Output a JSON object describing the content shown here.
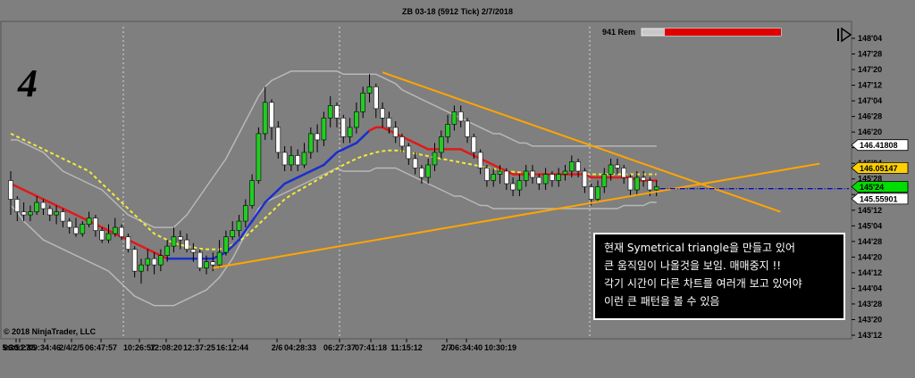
{
  "chart_data": {
    "type": "candlestick",
    "title": "ZB 03-18 (5912 Tick)  2/7/2018",
    "panel_number": "4",
    "remaining_label": "941 Rem",
    "copyright": "© 2018 NinjaTrader, LLC",
    "y_ticks": [
      "148'04",
      "147'28",
      "147'20",
      "147'12",
      "147'04",
      "146'28",
      "146'20",
      "146'12",
      "146'04",
      "145'28",
      "145'20",
      "145'12",
      "145'04",
      "144'28",
      "144'20",
      "144'12",
      "144'04",
      "143'28",
      "143'20",
      "143'12"
    ],
    "x_ticks": [
      "5:30:27",
      "06:51:35",
      "09:34:46",
      "2/4/2/5",
      "06:47:57",
      "10:26:57",
      "12:08:20",
      "12:37:25",
      "16:12:44",
      "2/6",
      "04:28:33",
      "06:27:37",
      "07:41:18",
      "11:15:12",
      "2/7",
      "06:34:40",
      "10:30:19"
    ],
    "price_markers": [
      {
        "label": "146.41808",
        "color": "#ffffff"
      },
      {
        "label": "146.05147",
        "color": "#ffd000"
      },
      {
        "label": "145'24",
        "color": "#00dd00"
      },
      {
        "label": "145.55901",
        "color": "#ffffff"
      }
    ],
    "annotation_lines": [
      "현재 Symetrical triangle을 만들고 있어",
      "큰 움직임이 나올것을 보임. 매매중지 !!",
      "각기 시간이 다른 차트를 여러개 보고 있어야",
      "이런 큰 패턴을 볼 수 있음"
    ],
    "colors": {
      "background": "#7f7f7f",
      "up_candle": "#22cc22",
      "down_candle": "#ffffff",
      "ema_fast": "#1a2fd0",
      "ema_slow": "#e01a1a",
      "sma_dashed": "#f2ea3c",
      "bollinger": "#b8b8b8",
      "trendlines": "#ffa500",
      "last_price_line": "#0000cc"
    },
    "series": [
      {
        "values": [
          [
            145.85,
            145.55,
            146.0,
            145.3
          ],
          [
            145.55,
            145.35,
            145.6,
            145.2
          ],
          [
            145.35,
            145.3,
            145.5,
            145.2
          ],
          [
            145.3,
            145.35,
            145.45,
            145.2
          ],
          [
            145.35,
            145.5,
            145.6,
            145.3
          ],
          [
            145.5,
            145.4,
            145.55,
            145.3
          ],
          [
            145.4,
            145.3,
            145.45,
            145.2
          ],
          [
            145.3,
            145.35,
            145.45,
            145.15
          ],
          [
            145.35,
            145.2,
            145.4,
            145.1
          ],
          [
            145.2,
            145.1,
            145.25,
            145.0
          ],
          [
            145.1,
            145.0,
            145.25,
            144.95
          ],
          [
            145.0,
            145.15,
            145.2,
            144.95
          ],
          [
            145.15,
            145.25,
            145.35,
            145.1
          ],
          [
            145.25,
            145.05,
            145.3,
            144.95
          ],
          [
            145.05,
            144.9,
            145.1,
            144.85
          ],
          [
            144.9,
            145.0,
            145.15,
            144.85
          ],
          [
            145.0,
            145.1,
            145.25,
            144.95
          ],
          [
            145.1,
            144.95,
            145.15,
            144.9
          ],
          [
            144.95,
            144.75,
            145.0,
            144.7
          ],
          [
            144.75,
            144.4,
            144.8,
            144.3
          ],
          [
            144.4,
            144.5,
            144.6,
            144.2
          ],
          [
            144.5,
            144.6,
            144.75,
            144.4
          ],
          [
            144.6,
            144.5,
            144.7,
            144.35
          ],
          [
            144.5,
            144.65,
            144.75,
            144.4
          ],
          [
            144.65,
            144.8,
            144.9,
            144.55
          ],
          [
            144.8,
            144.95,
            145.1,
            144.7
          ],
          [
            144.95,
            144.9,
            145.05,
            144.75
          ],
          [
            144.9,
            144.75,
            145.0,
            144.7
          ],
          [
            144.75,
            144.7,
            144.85,
            144.55
          ],
          [
            144.7,
            144.45,
            144.75,
            144.4
          ],
          [
            144.45,
            144.55,
            144.65,
            144.35
          ],
          [
            144.55,
            144.5,
            144.7,
            144.4
          ],
          [
            144.5,
            144.7,
            144.9,
            144.45
          ],
          [
            144.7,
            144.95,
            145.05,
            144.65
          ],
          [
            144.95,
            145.05,
            145.2,
            144.9
          ],
          [
            145.05,
            145.2,
            145.3,
            144.95
          ],
          [
            145.2,
            145.45,
            145.55,
            145.1
          ],
          [
            145.45,
            145.85,
            145.95,
            145.4
          ],
          [
            145.85,
            146.6,
            146.7,
            145.8
          ],
          [
            146.6,
            147.1,
            147.35,
            146.5
          ],
          [
            147.1,
            146.7,
            147.15,
            146.5
          ],
          [
            146.7,
            146.3,
            146.8,
            146.2
          ],
          [
            146.3,
            146.1,
            146.4,
            146.0
          ],
          [
            146.1,
            146.25,
            146.4,
            146.0
          ],
          [
            146.25,
            146.1,
            146.35,
            146.0
          ],
          [
            146.1,
            146.3,
            146.45,
            146.05
          ],
          [
            146.3,
            146.6,
            146.7,
            146.2
          ],
          [
            146.6,
            146.5,
            146.75,
            146.3
          ],
          [
            146.5,
            146.85,
            146.95,
            146.4
          ],
          [
            146.85,
            147.05,
            147.2,
            146.7
          ],
          [
            147.05,
            146.85,
            147.1,
            146.7
          ],
          [
            146.85,
            146.55,
            146.9,
            146.45
          ],
          [
            146.55,
            146.7,
            146.85,
            146.45
          ],
          [
            146.7,
            146.95,
            147.1,
            146.6
          ],
          [
            146.95,
            147.25,
            147.35,
            146.85
          ],
          [
            147.25,
            147.35,
            147.55,
            147.1
          ],
          [
            147.35,
            147.0,
            147.4,
            146.85
          ],
          [
            147.0,
            146.85,
            147.1,
            146.7
          ],
          [
            146.85,
            146.7,
            146.95,
            146.6
          ],
          [
            146.7,
            146.55,
            146.8,
            146.45
          ],
          [
            146.55,
            146.4,
            146.6,
            146.3
          ],
          [
            146.4,
            146.2,
            146.45,
            146.1
          ],
          [
            146.2,
            146.05,
            146.3,
            145.95
          ],
          [
            146.05,
            145.9,
            146.1,
            145.8
          ],
          [
            145.9,
            146.1,
            146.2,
            145.8
          ],
          [
            146.1,
            146.3,
            146.45,
            146.0
          ],
          [
            146.3,
            146.55,
            146.65,
            146.2
          ],
          [
            146.55,
            146.75,
            146.9,
            146.45
          ],
          [
            146.75,
            146.95,
            147.05,
            146.65
          ],
          [
            146.95,
            146.8,
            147.05,
            146.7
          ],
          [
            146.8,
            146.55,
            146.85,
            146.45
          ],
          [
            146.55,
            146.3,
            146.6,
            146.2
          ],
          [
            146.3,
            146.05,
            146.35,
            145.95
          ],
          [
            146.05,
            145.85,
            146.1,
            145.75
          ],
          [
            145.85,
            145.95,
            146.05,
            145.75
          ],
          [
            145.95,
            146.0,
            146.1,
            145.8
          ],
          [
            146.0,
            145.8,
            146.05,
            145.7
          ],
          [
            145.8,
            145.7,
            145.9,
            145.6
          ],
          [
            145.7,
            145.85,
            145.95,
            145.6
          ],
          [
            145.85,
            146.0,
            146.1,
            145.75
          ],
          [
            146.0,
            145.9,
            146.1,
            145.8
          ],
          [
            145.9,
            145.8,
            145.95,
            145.7
          ],
          [
            145.8,
            145.95,
            146.05,
            145.7
          ],
          [
            145.95,
            145.85,
            146.0,
            145.75
          ],
          [
            145.85,
            145.95,
            146.05,
            145.75
          ],
          [
            145.95,
            146.0,
            146.1,
            145.85
          ],
          [
            146.0,
            146.15,
            146.25,
            145.9
          ],
          [
            146.15,
            146.0,
            146.2,
            145.9
          ],
          [
            146.0,
            145.75,
            146.05,
            145.65
          ],
          [
            145.75,
            145.55,
            145.8,
            145.45
          ],
          [
            145.55,
            145.75,
            145.85,
            145.5
          ],
          [
            145.75,
            145.95,
            146.05,
            145.65
          ],
          [
            145.95,
            146.1,
            146.2,
            145.85
          ],
          [
            146.1,
            146.05,
            146.2,
            145.95
          ],
          [
            146.05,
            145.9,
            146.1,
            145.8
          ],
          [
            145.9,
            145.7,
            145.95,
            145.6
          ],
          [
            145.7,
            145.9,
            146.0,
            145.6
          ],
          [
            145.9,
            145.85,
            146.0,
            145.75
          ],
          [
            145.85,
            145.7,
            145.9,
            145.6
          ],
          [
            145.7,
            145.75,
            145.85,
            145.6
          ]
        ]
      }
    ],
    "bollinger_upper": [
      146.5,
      146.5,
      146.45,
      146.4,
      146.35,
      146.3,
      146.2,
      146.1,
      146.0,
      145.95,
      145.9,
      145.85,
      145.8,
      145.75,
      145.7,
      145.6,
      145.5,
      145.4,
      145.3,
      145.25,
      145.2,
      145.15,
      145.1,
      145.1,
      145.1,
      145.1,
      145.2,
      145.3,
      145.45,
      145.6,
      145.75,
      145.9,
      146.05,
      146.2,
      146.4,
      146.6,
      146.8,
      147.0,
      147.2,
      147.35,
      147.45,
      147.5,
      147.55,
      147.6,
      147.6,
      147.6,
      147.6,
      147.6,
      147.6,
      147.6,
      147.6,
      147.55,
      147.55,
      147.55,
      147.55,
      147.55,
      147.55,
      147.5,
      147.45,
      147.4,
      147.3,
      147.25,
      147.2,
      147.15,
      147.1,
      147.05,
      147.0,
      146.95,
      146.9,
      146.85,
      146.8,
      146.75,
      146.7,
      146.65,
      146.6,
      146.6,
      146.55,
      146.5,
      146.45,
      146.45,
      146.4,
      146.4,
      146.4,
      146.4,
      146.4,
      146.4,
      146.4,
      146.4,
      146.4,
      146.4,
      146.4,
      146.4,
      146.4,
      146.4,
      146.4,
      146.4,
      146.4,
      146.4,
      146.4,
      146.4
    ],
    "bollinger_lower": [
      145.45,
      145.35,
      145.2,
      145.1,
      145.0,
      144.9,
      144.85,
      144.8,
      144.75,
      144.7,
      144.65,
      144.6,
      144.55,
      144.5,
      144.45,
      144.4,
      144.3,
      144.2,
      144.1,
      144.0,
      143.95,
      143.9,
      143.85,
      143.85,
      143.85,
      143.85,
      143.9,
      143.95,
      144.0,
      144.05,
      144.1,
      144.2,
      144.3,
      144.45,
      144.6,
      144.8,
      145.0,
      145.2,
      145.4,
      145.5,
      145.55,
      145.6,
      145.65,
      145.7,
      145.75,
      145.8,
      145.85,
      145.9,
      145.95,
      146.0,
      146.05,
      146.0,
      146.0,
      146.0,
      146.0,
      146.0,
      146.05,
      146.05,
      146.05,
      146.05,
      146.0,
      145.95,
      145.9,
      145.85,
      145.8,
      145.75,
      145.7,
      145.65,
      145.6,
      145.6,
      145.55,
      145.5,
      145.45,
      145.45,
      145.4,
      145.4,
      145.4,
      145.4,
      145.4,
      145.4,
      145.4,
      145.4,
      145.4,
      145.4,
      145.4,
      145.4,
      145.4,
      145.4,
      145.4,
      145.4,
      145.4,
      145.4,
      145.4,
      145.4,
      145.45,
      145.45,
      145.45,
      145.45,
      145.5,
      145.5
    ],
    "ema_fast": [
      145.8,
      145.75,
      145.7,
      145.65,
      145.6,
      145.55,
      145.5,
      145.45,
      145.4,
      145.35,
      145.3,
      145.25,
      145.2,
      145.15,
      145.1,
      145.05,
      145.0,
      144.95,
      144.9,
      144.85,
      144.8,
      144.75,
      144.7,
      144.65,
      144.6,
      144.6,
      144.6,
      144.6,
      144.6,
      144.6,
      144.6,
      144.6,
      144.65,
      144.7,
      144.8,
      144.9,
      145.05,
      145.2,
      145.35,
      145.5,
      145.6,
      145.7,
      145.8,
      145.85,
      145.9,
      145.95,
      146.0,
      146.05,
      146.1,
      146.2,
      146.3,
      146.35,
      146.4,
      146.45,
      146.55,
      146.65,
      146.7,
      146.7,
      146.65,
      146.6,
      146.55,
      146.5,
      146.45,
      146.4,
      146.35,
      146.35,
      146.35,
      146.35,
      146.35,
      146.35,
      146.3,
      146.25,
      146.2,
      146.15,
      146.1,
      146.05,
      146.0,
      145.95,
      145.95,
      145.95,
      145.95,
      145.95,
      145.95,
      145.95,
      145.95,
      145.95,
      145.95,
      145.95,
      145.95,
      145.9,
      145.9,
      145.9,
      145.9,
      145.9,
      145.9,
      145.9,
      145.85,
      145.85,
      145.85,
      145.85
    ],
    "ema_fast_color": [
      "red",
      "red",
      "red",
      "red",
      "red",
      "red",
      "red",
      "red",
      "red",
      "red",
      "red",
      "red",
      "red",
      "red",
      "red",
      "red",
      "red",
      "red",
      "red",
      "red",
      "red",
      "red",
      "red",
      "red",
      "red",
      "blue",
      "blue",
      "blue",
      "blue",
      "blue",
      "blue",
      "blue",
      "blue",
      "blue",
      "blue",
      "blue",
      "blue",
      "blue",
      "blue",
      "blue",
      "blue",
      "blue",
      "blue",
      "blue",
      "blue",
      "blue",
      "blue",
      "blue",
      "blue",
      "blue",
      "blue",
      "blue",
      "blue",
      "blue",
      "blue",
      "blue",
      "red",
      "red",
      "red",
      "red",
      "red",
      "red",
      "red",
      "red",
      "red",
      "red",
      "red",
      "red",
      "red",
      "red",
      "red",
      "red",
      "red",
      "red",
      "red",
      "red",
      "red",
      "red",
      "red",
      "red",
      "red",
      "red",
      "red",
      "red",
      "red",
      "red",
      "red",
      "red",
      "red",
      "red",
      "red",
      "red",
      "red",
      "red",
      "red",
      "red",
      "red",
      "red",
      "red",
      "red"
    ],
    "sma_dashed": [
      146.6,
      146.55,
      146.5,
      146.45,
      146.4,
      146.35,
      146.3,
      146.25,
      146.2,
      146.15,
      146.1,
      146.05,
      146.0,
      145.9,
      145.8,
      145.7,
      145.6,
      145.5,
      145.4,
      145.3,
      145.2,
      145.1,
      145.0,
      144.95,
      144.9,
      144.85,
      144.82,
      144.8,
      144.78,
      144.76,
      144.75,
      144.75,
      144.75,
      144.78,
      144.82,
      144.88,
      144.95,
      145.05,
      145.15,
      145.25,
      145.35,
      145.45,
      145.55,
      145.62,
      145.68,
      145.74,
      145.8,
      145.86,
      145.92,
      145.98,
      146.04,
      146.1,
      146.15,
      146.2,
      146.24,
      146.27,
      146.3,
      146.32,
      146.33,
      146.33,
      146.32,
      146.3,
      146.28,
      146.26,
      146.24,
      146.22,
      146.2,
      146.18,
      146.16,
      146.14,
      146.12,
      146.1,
      146.08,
      146.06,
      146.04,
      146.02,
      146.0,
      145.99,
      145.98,
      145.97,
      145.96,
      145.95,
      145.95,
      145.95,
      145.95,
      145.95,
      145.95,
      145.95,
      145.95,
      145.95,
      145.95,
      145.95,
      145.95,
      145.95,
      145.95,
      145.95,
      145.95,
      145.95,
      145.95,
      145.95
    ]
  }
}
